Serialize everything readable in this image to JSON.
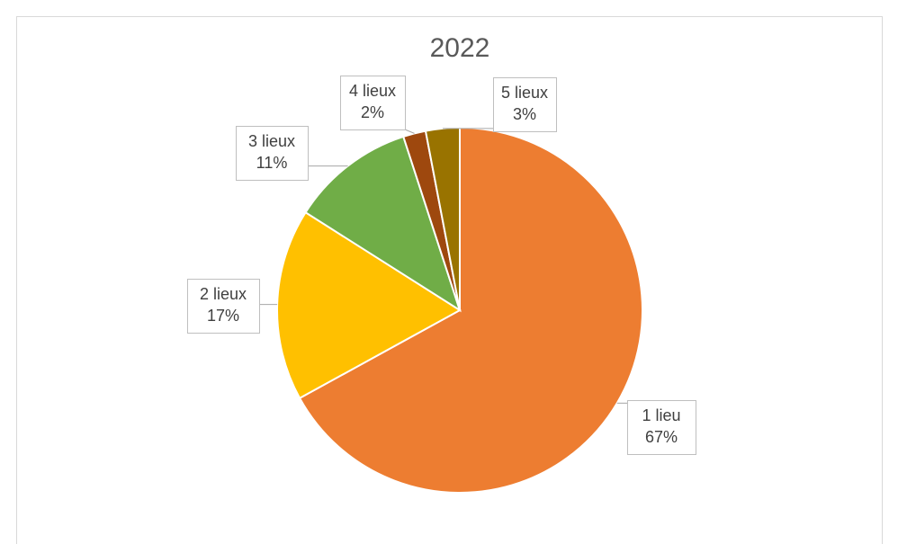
{
  "chart_data": {
    "type": "pie",
    "title": "2022",
    "categories": [
      "1 lieu",
      "2 lieux",
      "3 lieux",
      "4 lieux",
      "5 lieux"
    ],
    "values": [
      67,
      17,
      11,
      2,
      3
    ],
    "value_labels": [
      "67%",
      "17%",
      "11%",
      "2%",
      "3%"
    ],
    "colors": [
      "#ED7D31",
      "#FFC000",
      "#70AD47",
      "#9E480E",
      "#997300"
    ]
  }
}
